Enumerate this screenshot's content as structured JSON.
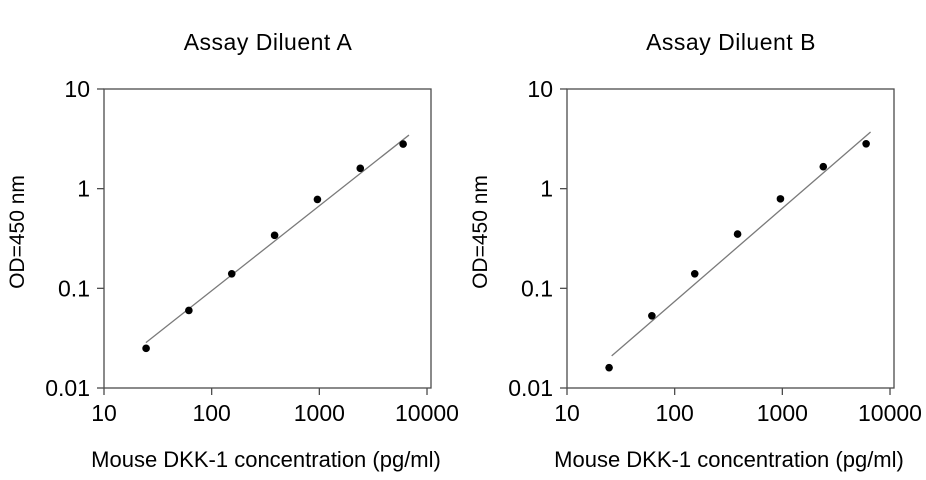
{
  "page": {
    "background": "#ffffff"
  },
  "colors": {
    "frame": "#4c4c4c",
    "tick": "#4c4c4c",
    "trendline": "#7a7a7a",
    "marker": "#000000",
    "text": "#000000"
  },
  "chart_data": [
    {
      "type": "scatter",
      "title": "Assay Diluent A",
      "xlabel": "Mouse DKK-1 concentration (pg/ml)",
      "ylabel": "OD=450 nm",
      "x_scale": "log",
      "y_scale": "log",
      "xlim": [
        10,
        10900
      ],
      "ylim": [
        0.01,
        10
      ],
      "x_ticks": [
        10,
        100,
        1000,
        10000
      ],
      "y_ticks": [
        0.01,
        0.1,
        1,
        10
      ],
      "grid": false,
      "legend": "none",
      "points": [
        {
          "x": 24.6,
          "y": 0.025
        },
        {
          "x": 61.4,
          "y": 0.06
        },
        {
          "x": 153.6,
          "y": 0.14
        },
        {
          "x": 384,
          "y": 0.34
        },
        {
          "x": 960,
          "y": 0.78
        },
        {
          "x": 2400,
          "y": 1.6
        },
        {
          "x": 6000,
          "y": 2.8
        }
      ],
      "trendline": {
        "x1": 24.5,
        "y1": 0.0285,
        "x2": 6800,
        "y2": 3.45
      }
    },
    {
      "type": "scatter",
      "title": "Assay Diluent B",
      "xlabel": "Mouse DKK-1 concentration (pg/ml)",
      "ylabel": "OD=450 nm",
      "x_scale": "log",
      "y_scale": "log",
      "xlim": [
        10,
        10900
      ],
      "ylim": [
        0.01,
        10
      ],
      "x_ticks": [
        10,
        100,
        1000,
        10000
      ],
      "y_ticks": [
        0.01,
        0.1,
        1,
        10
      ],
      "grid": false,
      "legend": "none",
      "points": [
        {
          "x": 24.6,
          "y": 0.016
        },
        {
          "x": 61.4,
          "y": 0.053
        },
        {
          "x": 153.6,
          "y": 0.14
        },
        {
          "x": 384,
          "y": 0.35
        },
        {
          "x": 960,
          "y": 0.79
        },
        {
          "x": 2400,
          "y": 1.66
        },
        {
          "x": 6000,
          "y": 2.82
        }
      ],
      "trendline": {
        "x1": 26,
        "y1": 0.021,
        "x2": 6600,
        "y2": 3.7
      }
    }
  ]
}
